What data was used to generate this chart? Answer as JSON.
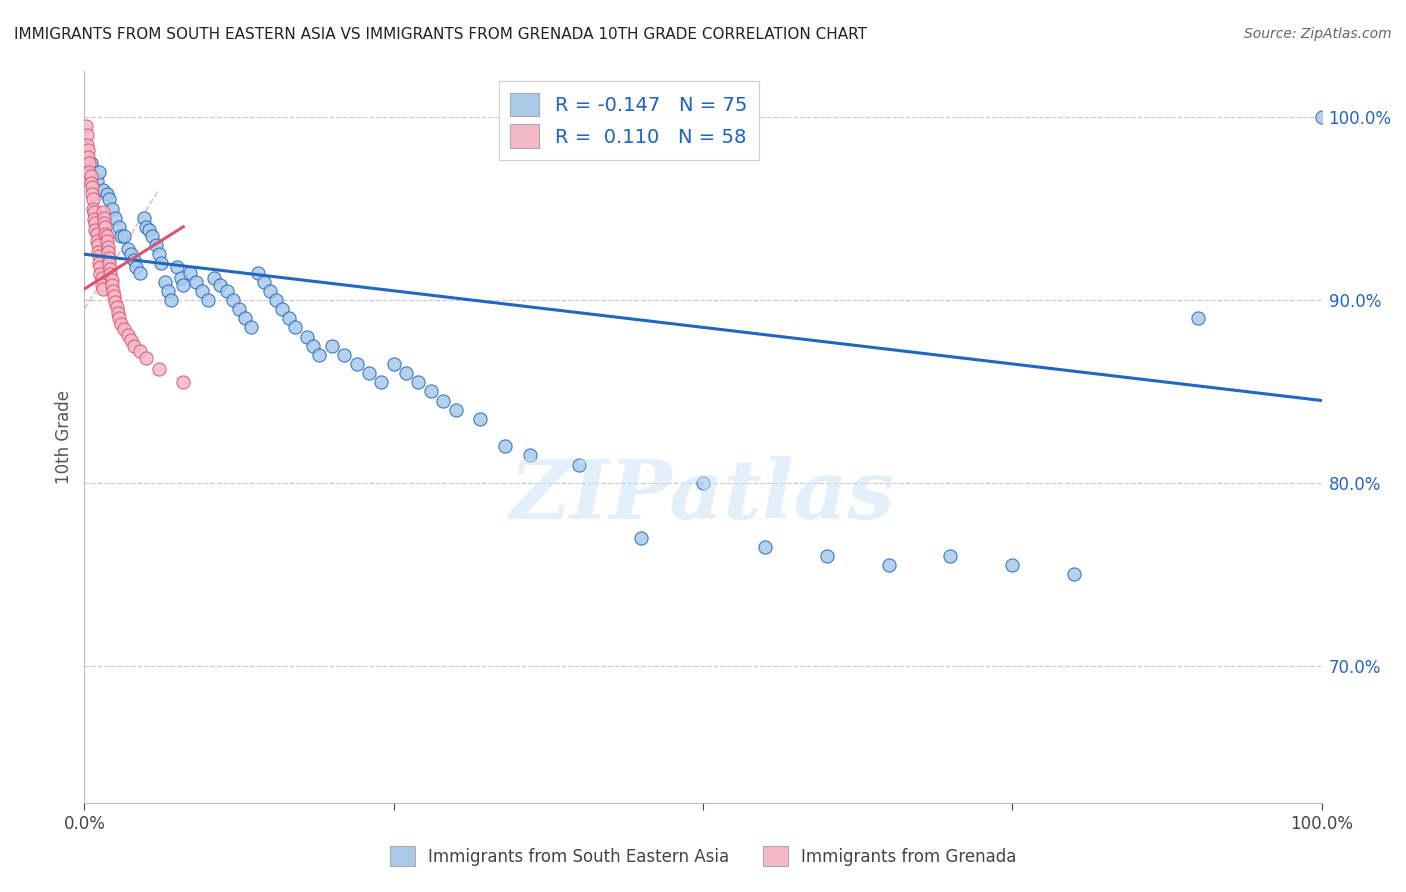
{
  "title": "IMMIGRANTS FROM SOUTH EASTERN ASIA VS IMMIGRANTS FROM GRENADA 10TH GRADE CORRELATION CHART",
  "source": "Source: ZipAtlas.com",
  "ylabel": "10th Grade",
  "legend_blue_r": "R = -0.147",
  "legend_blue_n": "N = 75",
  "legend_pink_r": "R =  0.110",
  "legend_pink_n": "N = 58",
  "legend_label_blue": "Immigrants from South Eastern Asia",
  "legend_label_pink": "Immigrants from Grenada",
  "blue_color": "#aac9e8",
  "pink_color": "#f5b8c8",
  "line_blue_color": "#2166c0",
  "line_pink_color": "#d9556f",
  "watermark": "ZIPatlas",
  "blue_scatter_x": [
    0.005,
    0.01,
    0.012,
    0.015,
    0.018,
    0.02,
    0.022,
    0.025,
    0.028,
    0.03,
    0.032,
    0.035,
    0.038,
    0.04,
    0.042,
    0.045,
    0.048,
    0.05,
    0.052,
    0.055,
    0.058,
    0.06,
    0.062,
    0.065,
    0.068,
    0.07,
    0.075,
    0.078,
    0.08,
    0.085,
    0.09,
    0.095,
    0.1,
    0.105,
    0.11,
    0.115,
    0.12,
    0.125,
    0.13,
    0.135,
    0.14,
    0.145,
    0.15,
    0.155,
    0.16,
    0.165,
    0.17,
    0.18,
    0.185,
    0.19,
    0.2,
    0.21,
    0.22,
    0.23,
    0.24,
    0.25,
    0.26,
    0.27,
    0.28,
    0.29,
    0.3,
    0.32,
    0.34,
    0.36,
    0.4,
    0.45,
    0.5,
    0.55,
    0.6,
    0.65,
    0.7,
    0.75,
    0.8,
    0.9,
    1.0
  ],
  "blue_scatter_y": [
    0.975,
    0.965,
    0.97,
    0.96,
    0.958,
    0.955,
    0.95,
    0.945,
    0.94,
    0.935,
    0.935,
    0.928,
    0.925,
    0.922,
    0.918,
    0.915,
    0.945,
    0.94,
    0.938,
    0.935,
    0.93,
    0.925,
    0.92,
    0.91,
    0.905,
    0.9,
    0.918,
    0.912,
    0.908,
    0.915,
    0.91,
    0.905,
    0.9,
    0.912,
    0.908,
    0.905,
    0.9,
    0.895,
    0.89,
    0.885,
    0.915,
    0.91,
    0.905,
    0.9,
    0.895,
    0.89,
    0.885,
    0.88,
    0.875,
    0.87,
    0.875,
    0.87,
    0.865,
    0.86,
    0.855,
    0.865,
    0.86,
    0.855,
    0.85,
    0.845,
    0.84,
    0.835,
    0.82,
    0.815,
    0.81,
    0.77,
    0.8,
    0.765,
    0.76,
    0.755,
    0.76,
    0.755,
    0.75,
    0.89,
    1.0
  ],
  "pink_scatter_x": [
    0.001,
    0.002,
    0.002,
    0.003,
    0.003,
    0.004,
    0.004,
    0.005,
    0.005,
    0.006,
    0.006,
    0.007,
    0.007,
    0.008,
    0.008,
    0.009,
    0.009,
    0.01,
    0.01,
    0.011,
    0.011,
    0.012,
    0.012,
    0.013,
    0.013,
    0.014,
    0.014,
    0.015,
    0.015,
    0.016,
    0.016,
    0.017,
    0.017,
    0.018,
    0.018,
    0.019,
    0.019,
    0.02,
    0.02,
    0.021,
    0.021,
    0.022,
    0.022,
    0.023,
    0.024,
    0.025,
    0.026,
    0.027,
    0.028,
    0.03,
    0.032,
    0.035,
    0.038,
    0.04,
    0.045,
    0.05,
    0.06,
    0.08
  ],
  "pink_scatter_y": [
    0.995,
    0.99,
    0.985,
    0.982,
    0.978,
    0.975,
    0.97,
    0.968,
    0.964,
    0.962,
    0.958,
    0.955,
    0.95,
    0.948,
    0.944,
    0.942,
    0.938,
    0.936,
    0.932,
    0.93,
    0.926,
    0.924,
    0.92,
    0.918,
    0.914,
    0.912,
    0.908,
    0.906,
    0.948,
    0.945,
    0.942,
    0.94,
    0.936,
    0.935,
    0.932,
    0.929,
    0.926,
    0.923,
    0.92,
    0.917,
    0.914,
    0.911,
    0.908,
    0.905,
    0.902,
    0.899,
    0.896,
    0.893,
    0.89,
    0.887,
    0.884,
    0.881,
    0.878,
    0.875,
    0.872,
    0.868,
    0.862,
    0.855
  ],
  "blue_line_x": [
    0.0,
    1.0
  ],
  "blue_line_y": [
    0.925,
    0.845
  ],
  "pink_line_x": [
    0.0,
    0.08
  ],
  "pink_line_y": [
    0.906,
    0.94
  ],
  "diag_line_x": [
    0.0,
    0.06
  ],
  "diag_line_y": [
    0.895,
    0.96
  ],
  "xlim": [
    0.0,
    1.0
  ],
  "ylim": [
    0.625,
    1.025
  ],
  "yticks": [
    1.0,
    0.9,
    0.8,
    0.7
  ],
  "xticks": [
    0.0,
    0.25,
    0.5,
    0.75,
    1.0
  ],
  "xticklabels": [
    "0.0%",
    "",
    "",
    "",
    "100.0%"
  ],
  "extra_xtick_labels": [
    [
      0.0,
      "0.0%"
    ],
    [
      1.0,
      "100.0%"
    ]
  ]
}
